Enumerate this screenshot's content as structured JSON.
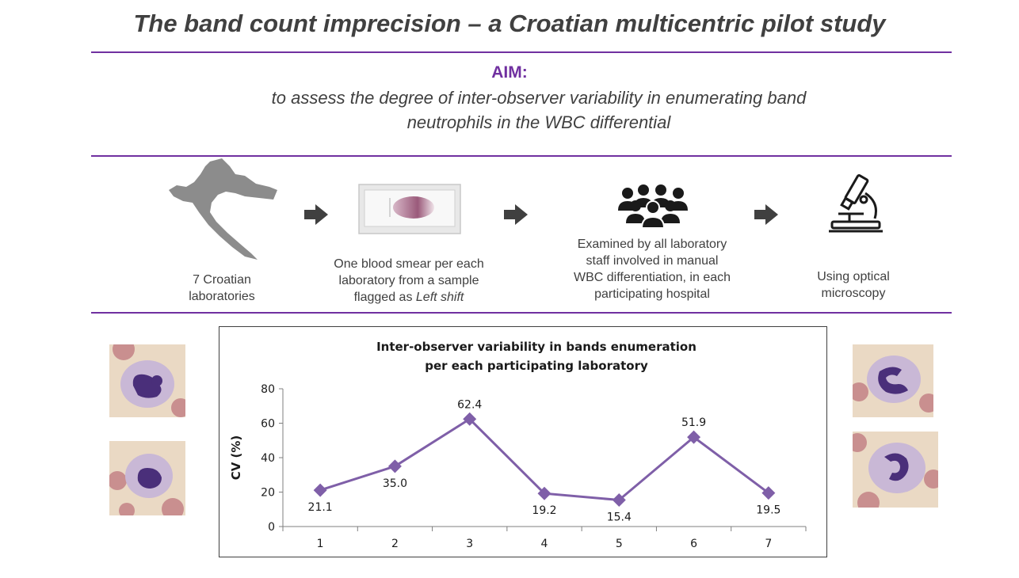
{
  "title": "The band count imprecision – a Croatian multicentric pilot study",
  "aim": {
    "label": "AIM:",
    "text_line1": "to assess the degree of inter-observer variability in enumerating band",
    "text_line2": "neutrophils in the WBC differential"
  },
  "steps": [
    {
      "icon": "croatia-map-icon",
      "line1": "7 Croatian",
      "line2": "laboratories"
    },
    {
      "icon": "blood-smear-slide-icon",
      "line1": "One blood smear per each",
      "line2": "laboratory from a sample",
      "line3_prefix": "flagged as ",
      "line3_italic": "Left shift"
    },
    {
      "icon": "people-group-icon",
      "line1": "Examined by all laboratory",
      "line2": "staff involved in manual",
      "line3": "WBC differentiation, in each",
      "line4": "participating hospital"
    },
    {
      "icon": "microscope-icon",
      "line1": "Using optical",
      "line2": "microscopy"
    }
  ],
  "colors": {
    "accent": "#7030a0",
    "text": "#404040",
    "series": "#7f5fa8"
  },
  "chart_data": {
    "type": "line",
    "title_line1": "Inter-observer variability in bands enumeration",
    "title_line2": "per each participating laboratory",
    "xlabel": "",
    "ylabel": "CV (%)",
    "x": [
      "1",
      "2",
      "3",
      "4",
      "5",
      "6",
      "7"
    ],
    "values": [
      21.1,
      35.0,
      62.4,
      19.2,
      15.4,
      51.9,
      19.5
    ],
    "data_labels": [
      "21.1",
      "35.0",
      "62.4",
      "19.2",
      "15.4",
      "51.9",
      "19.5"
    ],
    "ylim": [
      0,
      80
    ],
    "yticks": [
      "0",
      "20",
      "40",
      "60",
      "80"
    ],
    "grid": false
  }
}
